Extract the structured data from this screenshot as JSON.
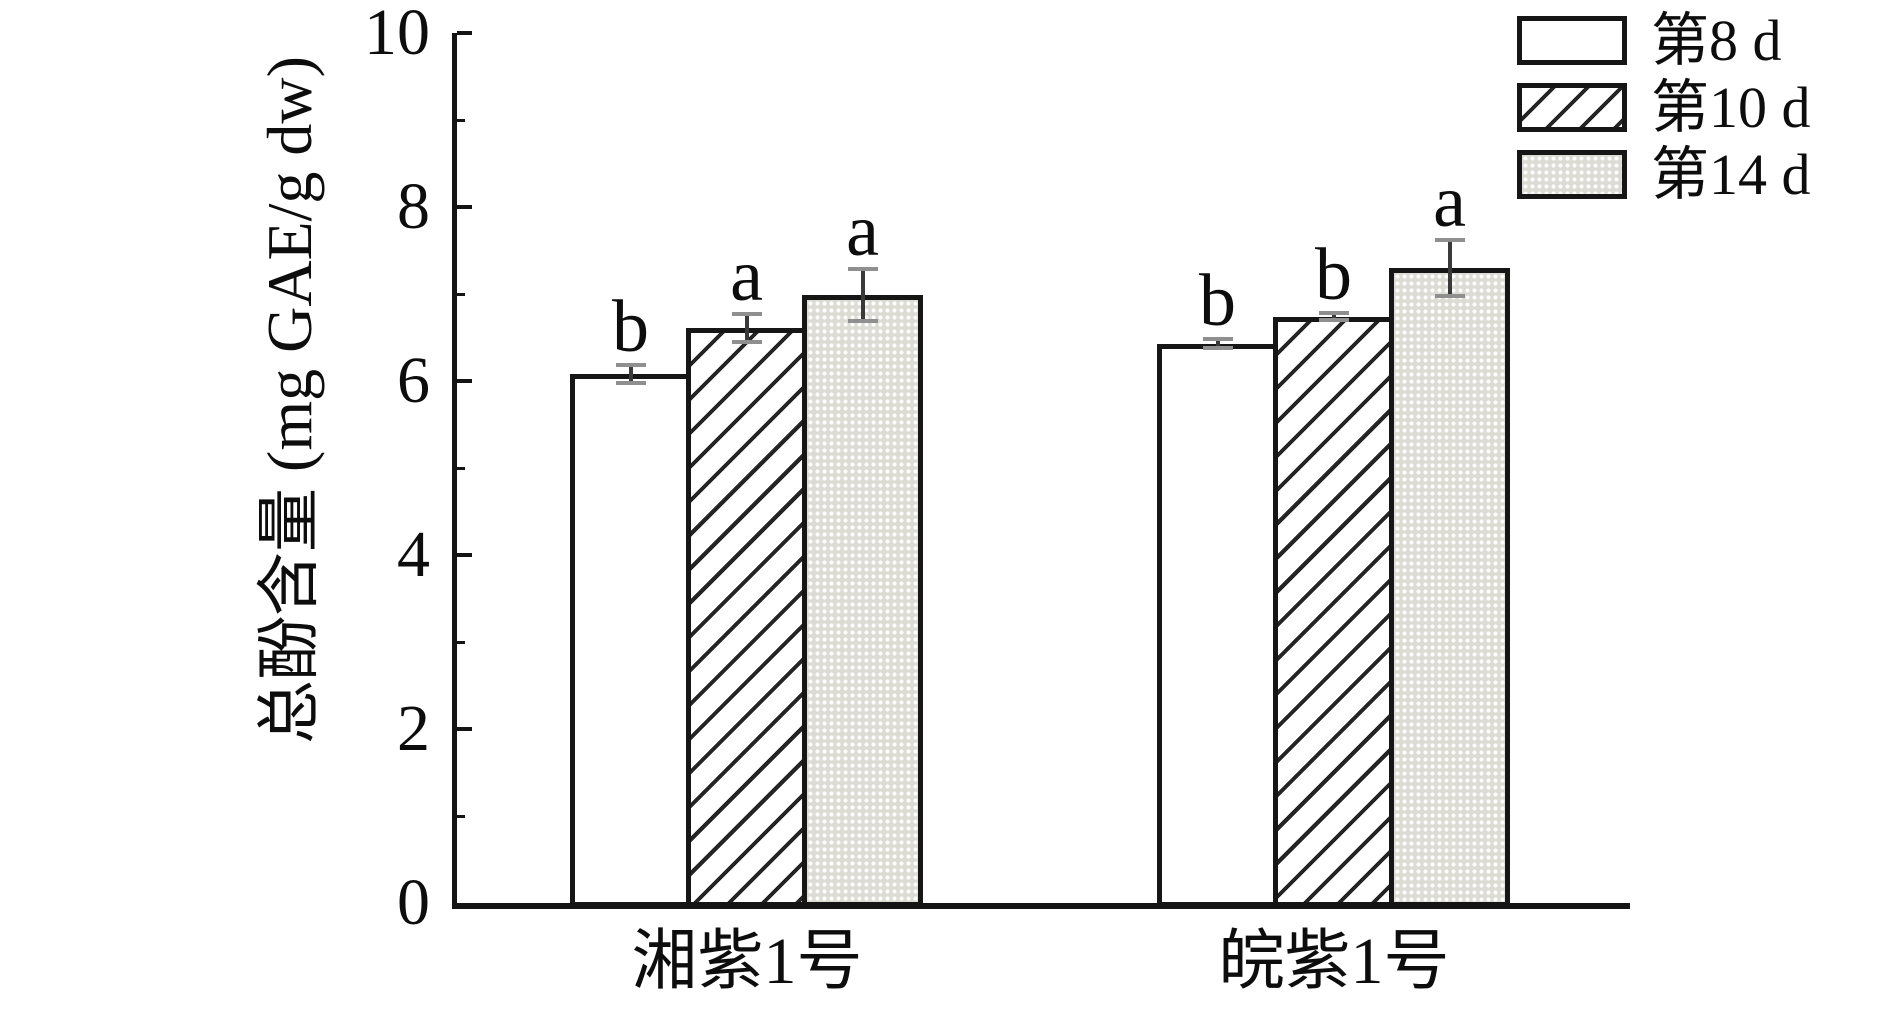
{
  "chart_data": {
    "type": "bar",
    "title": "",
    "ylabel": "总酚含量 (mg GAE/g dw)",
    "xlabel": "",
    "ylim": [
      0,
      10
    ],
    "yticks_major": [
      0,
      2,
      4,
      6,
      8,
      10
    ],
    "yticks_minor": [
      1,
      3,
      5,
      7,
      9
    ],
    "grid": false,
    "legend_position": "top-right",
    "categories": [
      "湘紫1号",
      "皖紫1号"
    ],
    "series": [
      {
        "name": "第8 d",
        "pattern": "solid-white",
        "values": [
          6.08,
          6.43
        ],
        "errors": [
          0.1,
          0.05
        ],
        "sig_letters": [
          "b",
          "b"
        ]
      },
      {
        "name": "第10 d",
        "pattern": "diagonal-hatch",
        "values": [
          6.61,
          6.74
        ],
        "errors": [
          0.16,
          0.04
        ],
        "sig_letters": [
          "a",
          "b"
        ]
      },
      {
        "name": "第14 d",
        "pattern": "dot-stipple",
        "values": [
          6.99,
          7.3
        ],
        "errors": [
          0.3,
          0.32
        ],
        "sig_letters": [
          "a",
          "a"
        ]
      }
    ],
    "colors": {
      "stroke": "#161616",
      "stipple_fill": "#dcdcd4",
      "error_stem": "#3a3a3a",
      "error_cap": "#8f8f8f"
    }
  }
}
